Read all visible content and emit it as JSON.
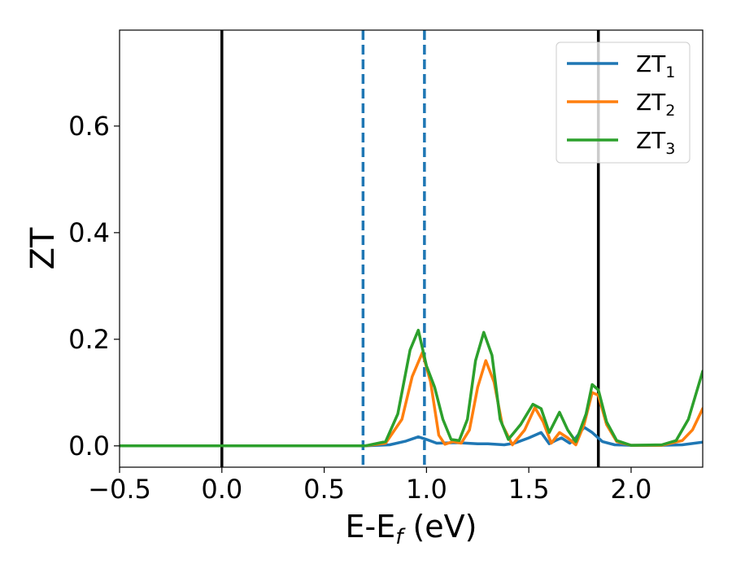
{
  "chart_data": {
    "type": "line",
    "title": "",
    "xlabel": "E-E",
    "xlabel_sub": "f",
    "xlabel_unit": " (eV)",
    "ylabel": "ZT",
    "xlim": [
      -0.5,
      2.35
    ],
    "ylim": [
      -0.04,
      0.78
    ],
    "xticks": [
      -0.5,
      0.0,
      0.5,
      1.0,
      1.5,
      2.0
    ],
    "xtick_labels": [
      "−0.5",
      "0.0",
      "0.5",
      "1.0",
      "1.5",
      "2.0"
    ],
    "yticks": [
      0.0,
      0.2,
      0.4,
      0.6
    ],
    "ytick_labels": [
      "0.0",
      "0.2",
      "0.4",
      "0.6"
    ],
    "grid": false,
    "legend_position": "top-right",
    "vlines_solid": [
      0.0,
      1.84
    ],
    "vlines_dashed": [
      0.69,
      0.99
    ],
    "series": [
      {
        "name": "ZT",
        "sub": "1",
        "color": "#1f77b4",
        "points": [
          [
            -0.5,
            0.0
          ],
          [
            0.7,
            0.0
          ],
          [
            0.82,
            0.002
          ],
          [
            0.9,
            0.009
          ],
          [
            0.96,
            0.017
          ],
          [
            1.0,
            0.012
          ],
          [
            1.05,
            0.005
          ],
          [
            1.15,
            0.006
          ],
          [
            1.25,
            0.004
          ],
          [
            1.3,
            0.004
          ],
          [
            1.38,
            0.002
          ],
          [
            1.43,
            0.005
          ],
          [
            1.5,
            0.015
          ],
          [
            1.56,
            0.025
          ],
          [
            1.6,
            0.004
          ],
          [
            1.63,
            0.01
          ],
          [
            1.66,
            0.015
          ],
          [
            1.7,
            0.005
          ],
          [
            1.73,
            0.015
          ],
          [
            1.77,
            0.035
          ],
          [
            1.81,
            0.025
          ],
          [
            1.86,
            0.008
          ],
          [
            1.92,
            0.002
          ],
          [
            2.0,
            0.001
          ],
          [
            2.15,
            0.001
          ],
          [
            2.25,
            0.002
          ],
          [
            2.35,
            0.007
          ]
        ]
      },
      {
        "name": "ZT",
        "sub": "2",
        "color": "#ff7f0e",
        "points": [
          [
            -0.5,
            0.0
          ],
          [
            0.7,
            0.0
          ],
          [
            0.8,
            0.005
          ],
          [
            0.88,
            0.05
          ],
          [
            0.93,
            0.13
          ],
          [
            0.98,
            0.175
          ],
          [
            1.02,
            0.12
          ],
          [
            1.06,
            0.02
          ],
          [
            1.09,
            0.003
          ],
          [
            1.13,
            0.008
          ],
          [
            1.17,
            0.005
          ],
          [
            1.21,
            0.03
          ],
          [
            1.25,
            0.11
          ],
          [
            1.29,
            0.16
          ],
          [
            1.33,
            0.12
          ],
          [
            1.37,
            0.04
          ],
          [
            1.42,
            0.002
          ],
          [
            1.48,
            0.03
          ],
          [
            1.53,
            0.072
          ],
          [
            1.57,
            0.045
          ],
          [
            1.61,
            0.005
          ],
          [
            1.65,
            0.025
          ],
          [
            1.69,
            0.015
          ],
          [
            1.73,
            0.002
          ],
          [
            1.77,
            0.04
          ],
          [
            1.81,
            0.1
          ],
          [
            1.84,
            0.095
          ],
          [
            1.88,
            0.04
          ],
          [
            1.93,
            0.008
          ],
          [
            2.0,
            0.001
          ],
          [
            2.15,
            0.001
          ],
          [
            2.25,
            0.01
          ],
          [
            2.3,
            0.03
          ],
          [
            2.35,
            0.07
          ]
        ]
      },
      {
        "name": "ZT",
        "sub": "3",
        "color": "#2ca02c",
        "points": [
          [
            -0.5,
            0.0
          ],
          [
            0.7,
            0.0
          ],
          [
            0.8,
            0.008
          ],
          [
            0.86,
            0.06
          ],
          [
            0.92,
            0.18
          ],
          [
            0.96,
            0.217
          ],
          [
            1.0,
            0.15
          ],
          [
            1.04,
            0.11
          ],
          [
            1.08,
            0.05
          ],
          [
            1.12,
            0.012
          ],
          [
            1.16,
            0.01
          ],
          [
            1.2,
            0.05
          ],
          [
            1.24,
            0.16
          ],
          [
            1.28,
            0.213
          ],
          [
            1.32,
            0.17
          ],
          [
            1.36,
            0.05
          ],
          [
            1.4,
            0.012
          ],
          [
            1.46,
            0.04
          ],
          [
            1.52,
            0.078
          ],
          [
            1.56,
            0.07
          ],
          [
            1.6,
            0.025
          ],
          [
            1.65,
            0.063
          ],
          [
            1.69,
            0.03
          ],
          [
            1.73,
            0.008
          ],
          [
            1.78,
            0.06
          ],
          [
            1.81,
            0.115
          ],
          [
            1.84,
            0.105
          ],
          [
            1.88,
            0.045
          ],
          [
            1.93,
            0.01
          ],
          [
            2.0,
            0.001
          ],
          [
            2.15,
            0.002
          ],
          [
            2.22,
            0.01
          ],
          [
            2.28,
            0.05
          ],
          [
            2.35,
            0.14
          ]
        ]
      }
    ]
  }
}
